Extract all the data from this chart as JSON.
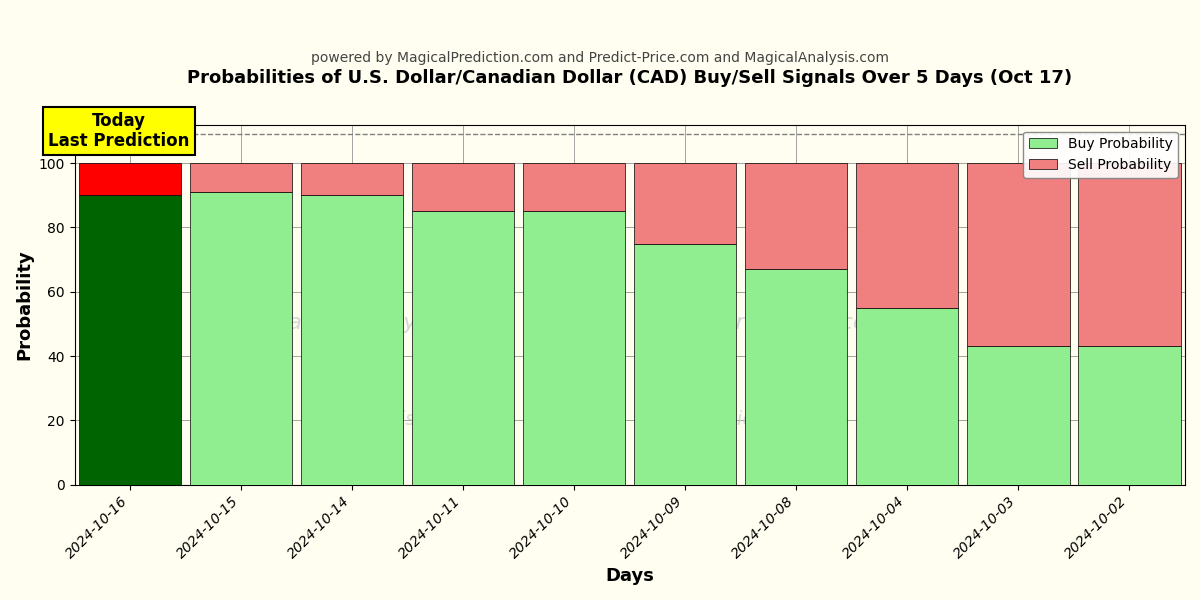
{
  "title": "Probabilities of U.S. Dollar/Canadian Dollar (CAD) Buy/Sell Signals Over 5 Days (Oct 17)",
  "subtitle": "powered by MagicalPrediction.com and Predict-Price.com and MagicalAnalysis.com",
  "xlabel": "Days",
  "ylabel": "Probability",
  "categories": [
    "2024-10-16",
    "2024-10-15",
    "2024-10-14",
    "2024-10-11",
    "2024-10-10",
    "2024-10-09",
    "2024-10-08",
    "2024-10-04",
    "2024-10-03",
    "2024-10-02"
  ],
  "buy_values": [
    90,
    91,
    90,
    85,
    85,
    75,
    67,
    55,
    43,
    43
  ],
  "sell_values": [
    10,
    9,
    10,
    15,
    15,
    25,
    33,
    45,
    57,
    57
  ],
  "today_buy_color": "#006400",
  "today_sell_color": "#FF0000",
  "buy_color": "#90EE90",
  "sell_color": "#F08080",
  "today_annotation": "Today\nLast Prediction",
  "annotation_bg": "#FFFF00",
  "ylim": [
    0,
    112
  ],
  "dashed_line_y": 109,
  "legend_buy": "Buy Probability",
  "legend_sell": "Sell Probability",
  "figsize": [
    12,
    6
  ],
  "dpi": 100,
  "bg_color": "#FFFEF0",
  "bar_width": 0.92
}
